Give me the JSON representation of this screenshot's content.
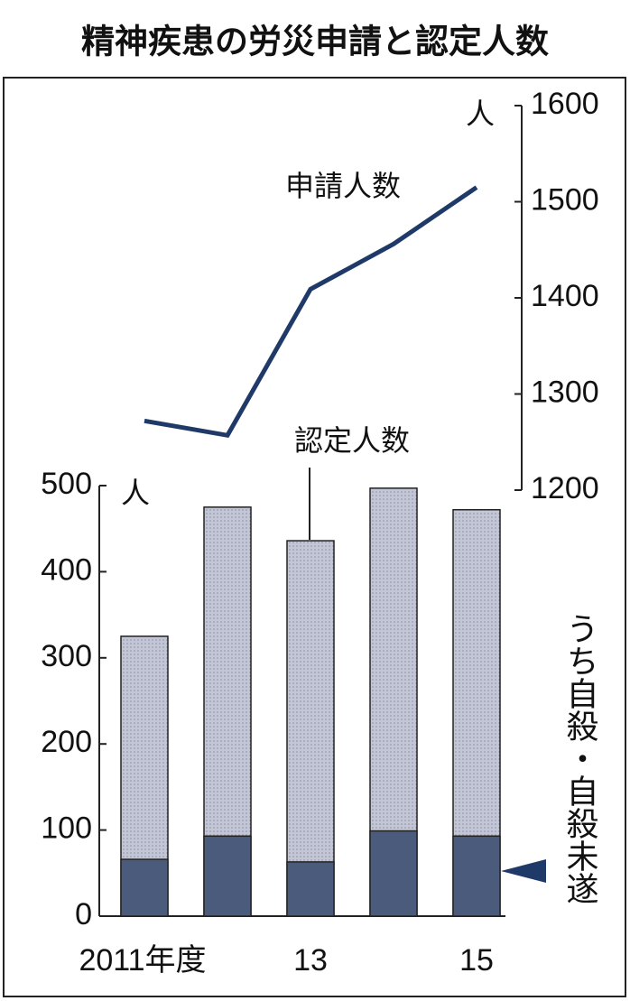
{
  "title": "精神疾患の労災申請と認定人数",
  "chart_data": [
    {
      "type": "line",
      "series": [
        {
          "name": "申請人数",
          "color": "#1f3a68",
          "values": [
            1272,
            1257,
            1409,
            1456,
            1515
          ]
        }
      ],
      "ylim": [
        1200,
        1600
      ],
      "yticks": [
        1200,
        1300,
        1400,
        1500,
        1600
      ],
      "y_unit": "人"
    },
    {
      "type": "bar",
      "barmode": "overlay",
      "categories": [
        "2011年度",
        null,
        "13",
        null,
        "15"
      ],
      "series": [
        {
          "name": "認定人数",
          "color": "#b9bdcc",
          "values": [
            325,
            475,
            436,
            497,
            472
          ]
        },
        {
          "name": "うち自殺・自殺未遂",
          "color": "#4b5b7c",
          "values": [
            66,
            93,
            63,
            99,
            93
          ]
        }
      ],
      "ylim": [
        0,
        500
      ],
      "yticks": [
        0,
        100,
        200,
        300,
        400,
        500
      ],
      "y_unit": "人"
    }
  ]
}
